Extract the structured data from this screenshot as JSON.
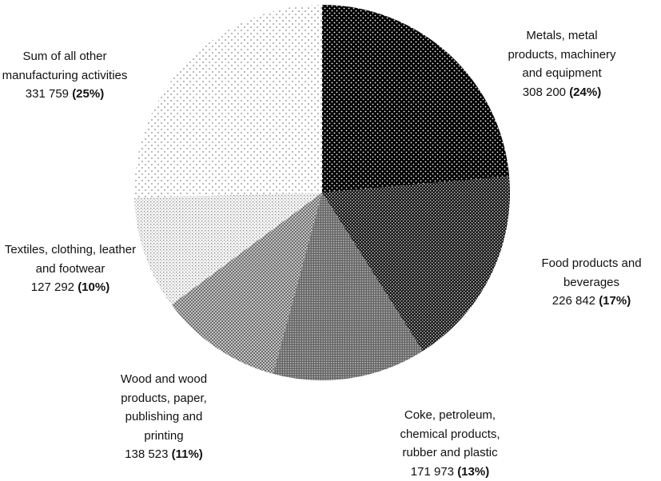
{
  "chart_data": {
    "type": "pie",
    "categories": [
      "Metals, metal products, machinery and equipment",
      "Food products and beverages",
      "Coke, petroleum, chemical products, rubber and plastic",
      "Wood and wood products, paper, publishing and printing",
      "Textiles, clothing, leather and footwear",
      "Sum of all other manufacturing activities"
    ],
    "values": [
      308200,
      226842,
      171973,
      138523,
      127292,
      331759
    ],
    "value_labels": [
      "308 200",
      "226 842",
      "171 973",
      "138 523",
      "127 292",
      "331 759"
    ],
    "percents": [
      24,
      17,
      13,
      11,
      10,
      25
    ],
    "percent_labels": [
      "(24%)",
      "(17%)",
      "(13%)",
      "(11%)",
      "(10%)",
      "(25%)"
    ]
  }
}
